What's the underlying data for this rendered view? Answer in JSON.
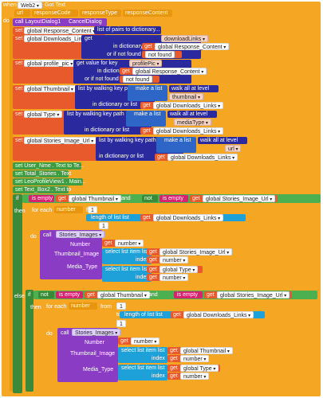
{
  "event": {
    "when": "when",
    "component": "Web2",
    "event": "Got Text",
    "params": [
      "url",
      "responseCode",
      "responseType",
      "responseContent"
    ],
    "do": "do"
  },
  "calls": {
    "layout_dialog": "call  LayoutDialog1",
    "cancel_dialog": "CancelDialog"
  },
  "common": {
    "set": "set",
    "to": "to",
    "get": "get",
    "in_dictionary": "in dictionary",
    "or_if_not_found": "or if not found",
    "not_found": "not found",
    "in_dictionary_or_list": "in dictionary or list",
    "make_a_list": "make a list",
    "walk_all": "walk all at level",
    "list_by_walking": "list by walking key path",
    "length_of_list": "length of list  list",
    "select_list_item": "select list item  list",
    "index": "index",
    "is_empty": "is empty",
    "and": "and",
    "not": "not",
    "if": "if",
    "then": "then",
    "else": "else",
    "by": "by",
    "from": "from",
    "number": "number",
    "one": "1",
    "call": "call",
    "stories_images": "Stories_Images",
    "number_param": "Number",
    "thumbnail_param": "Thumbnail_Image",
    "media_param": "Media_Type",
    "for_each": "for each",
    "for_each_num": "number",
    "do": "do"
  },
  "vars": {
    "response_content": "global Response_Content",
    "downloads_links": "global Downloads_Links",
    "profile_pic": "global profile_pic",
    "thumbnail": "global Thumbnail",
    "type": "global Type",
    "stories_image_url": "global Stories_Image_Url",
    "response_content_param": "global Response_Content",
    "downloads_links_get": "global Downloads_Links"
  },
  "strings": {
    "list_of_pairs": "list of pairs to dictionary...",
    "download_links": "downloadLinks",
    "profile_pic": "profilePic",
    "thumbnail": "thumbnail",
    "media_type": "mediaType",
    "url": "url"
  },
  "setters": [
    "set  User_Nme . Text  to  Te...",
    "set  Total_Stories . Text",
    "set  LeoProfileView1 . Main...",
    "set  Text_Box2 . Text  to"
  ],
  "for_var": "number"
}
